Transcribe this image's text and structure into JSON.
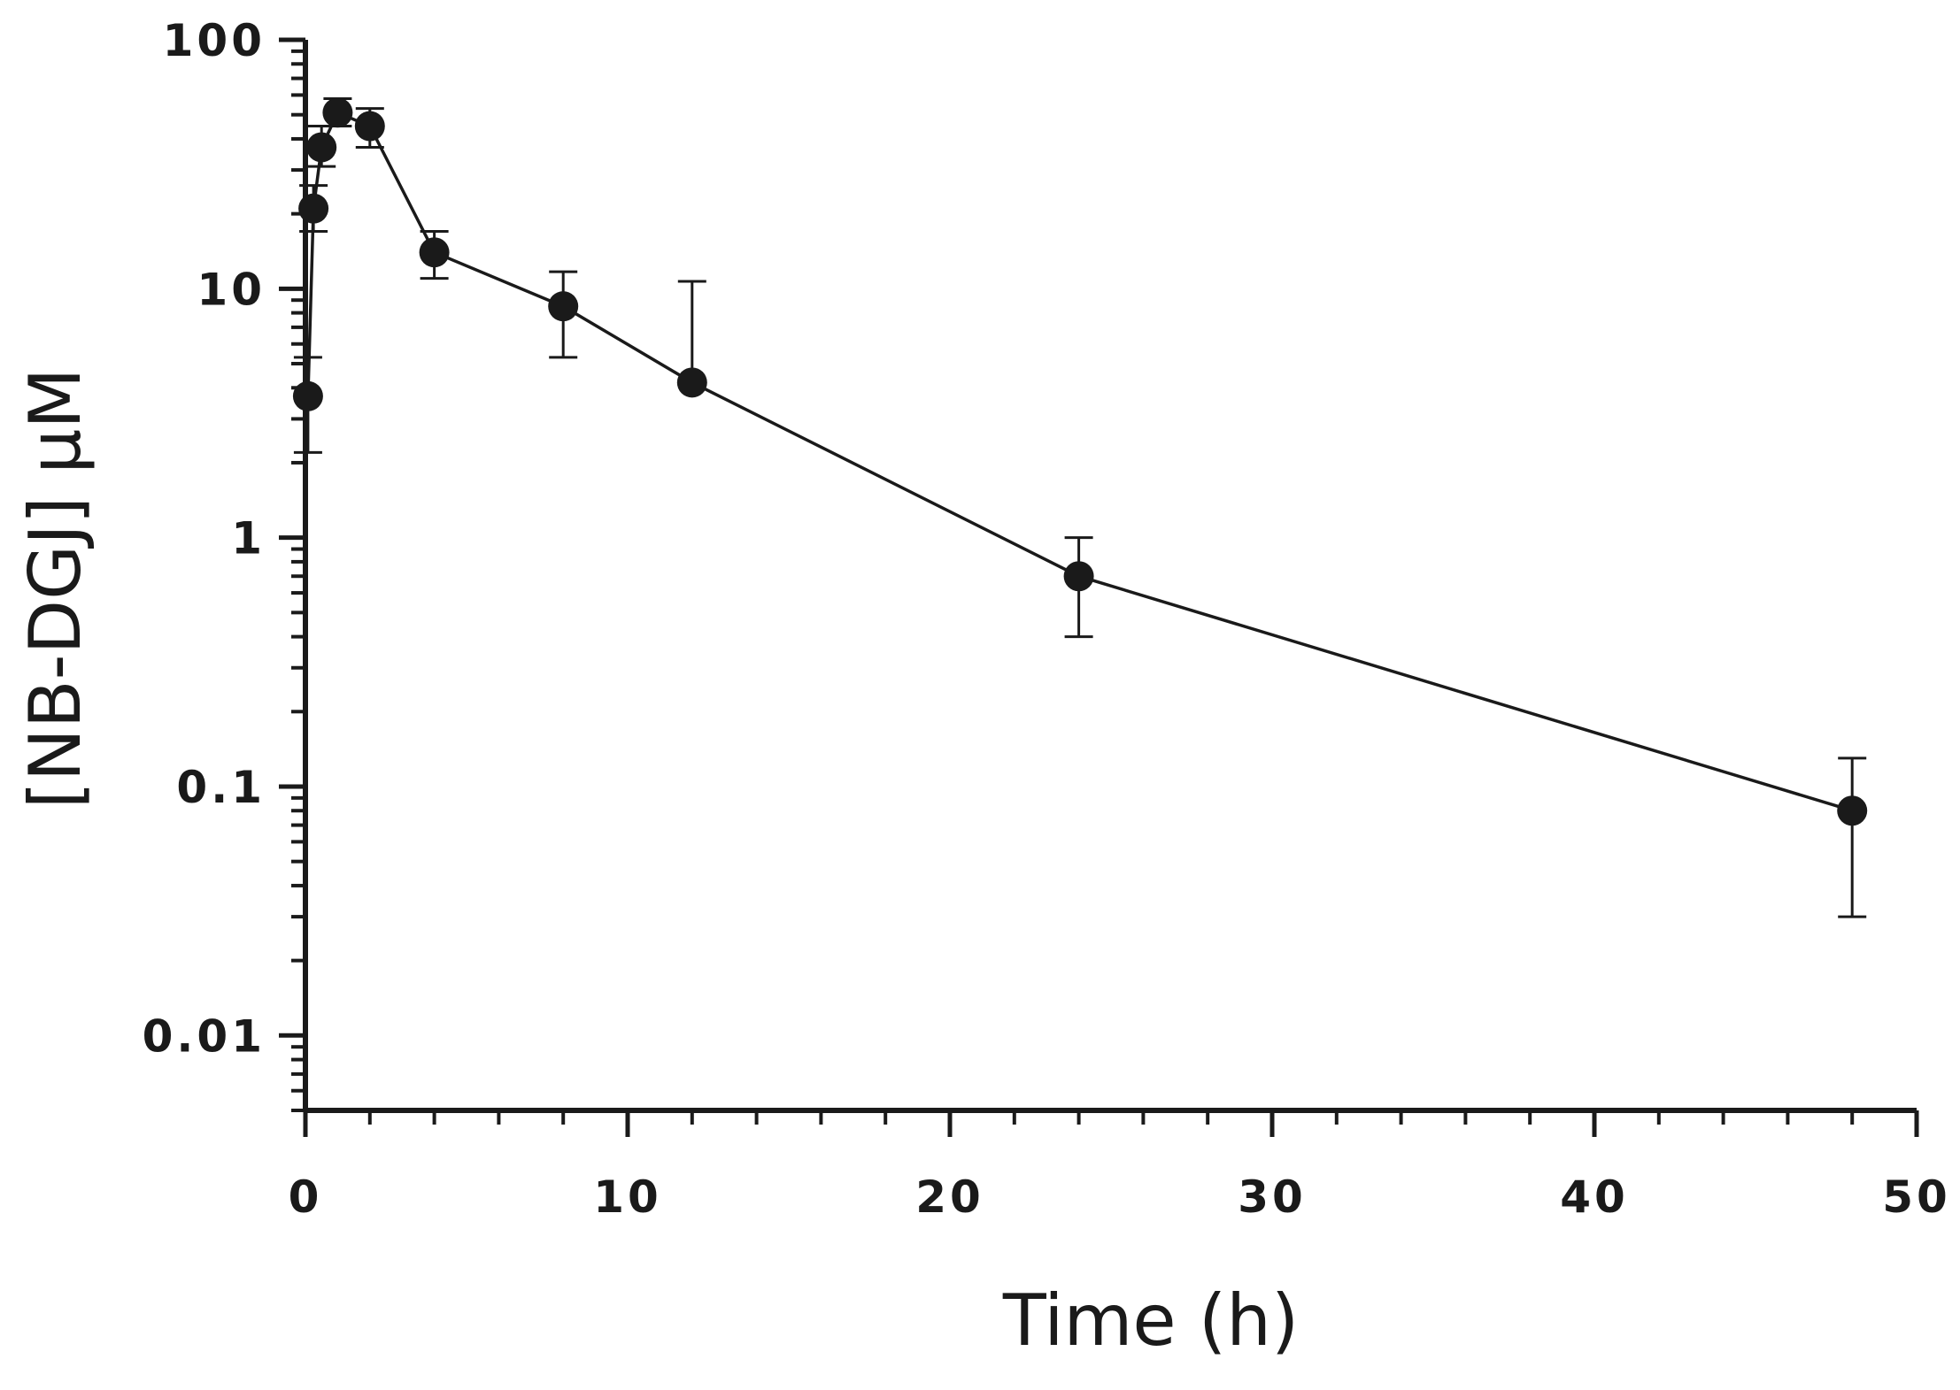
{
  "chart_data": {
    "type": "scatter",
    "xlabel": "Time (h)",
    "ylabel": "[NB-DGJ] μM",
    "x_scale": "linear",
    "y_scale": "log",
    "xlim": [
      0,
      50
    ],
    "ylim": [
      0.005,
      100
    ],
    "x_ticks": [
      0,
      10,
      20,
      30,
      40,
      50
    ],
    "x_tick_labels": [
      "0",
      "10",
      "20",
      "30",
      "40",
      "50"
    ],
    "y_ticks": [
      0.01,
      0.1,
      1,
      10,
      100
    ],
    "y_tick_labels": [
      "0.01",
      "0.1",
      "1",
      "10",
      "100"
    ],
    "grid": false,
    "legend": "none",
    "series": [
      {
        "connected": true,
        "color": "#1a1a1a",
        "points": [
          {
            "x": 0.08,
            "y": 3.7,
            "err_low": 2.2,
            "err_high": 5.3
          },
          {
            "x": 0.25,
            "y": 21,
            "err_low": 17,
            "err_high": 26
          },
          {
            "x": 0.5,
            "y": 37,
            "err_low": 31,
            "err_high": 45
          },
          {
            "x": 1,
            "y": 51,
            "err_low": 45,
            "err_high": 58
          },
          {
            "x": 2,
            "y": 45,
            "err_low": 37,
            "err_high": 53
          },
          {
            "x": 4,
            "y": 14,
            "err_low": 11,
            "err_high": 17
          },
          {
            "x": 8,
            "y": 8.5,
            "err_low": 5.3,
            "err_high": 11.7
          },
          {
            "x": 12,
            "y": 4.2,
            "err_low": 4.2,
            "err_high": 10.7
          },
          {
            "x": 24,
            "y": 0.7,
            "err_low": 0.4,
            "err_high": 1.0
          },
          {
            "x": 48,
            "y": 0.08,
            "err_low": 0.03,
            "err_high": 0.13
          }
        ]
      }
    ]
  }
}
